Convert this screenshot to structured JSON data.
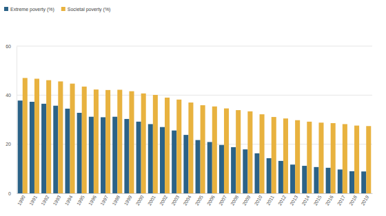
{
  "chart_data": {
    "type": "bar",
    "categories": [
      "1990",
      "1991",
      "1992",
      "1993",
      "1994",
      "1995",
      "1996",
      "1997",
      "1998",
      "1999",
      "2000",
      "2001",
      "2002",
      "2003",
      "2004",
      "2005",
      "2006",
      "2007",
      "2008",
      "2009",
      "2010",
      "2011",
      "2012",
      "2013",
      "2014",
      "2015",
      "2016",
      "2017",
      "2018",
      "2019"
    ],
    "series": [
      {
        "name": "Extreme poverty (%)",
        "color": "#2b6287",
        "values": [
          37.8,
          37.3,
          36.5,
          35.7,
          34.5,
          32.8,
          31.2,
          31.0,
          31.2,
          30.3,
          29.2,
          28.2,
          27.0,
          25.6,
          23.8,
          21.7,
          20.9,
          19.7,
          18.8,
          17.9,
          16.3,
          14.3,
          13.2,
          11.7,
          11.2,
          10.7,
          10.4,
          9.7,
          9.0,
          8.9
        ]
      },
      {
        "name": "Societal poverty (%)",
        "color": "#e8b23f",
        "values": [
          47.0,
          46.7,
          46.1,
          45.6,
          44.7,
          43.5,
          42.3,
          42.1,
          42.2,
          41.6,
          40.7,
          40.1,
          39.0,
          38.2,
          37.0,
          35.9,
          35.4,
          34.6,
          33.9,
          33.4,
          32.2,
          31.1,
          30.5,
          29.8,
          29.2,
          28.8,
          28.6,
          28.2,
          27.6,
          27.4
        ]
      }
    ],
    "ylim": [
      0,
      60
    ],
    "yticks": [
      0,
      20,
      40,
      60
    ],
    "grid": true,
    "legend": "top-left"
  }
}
